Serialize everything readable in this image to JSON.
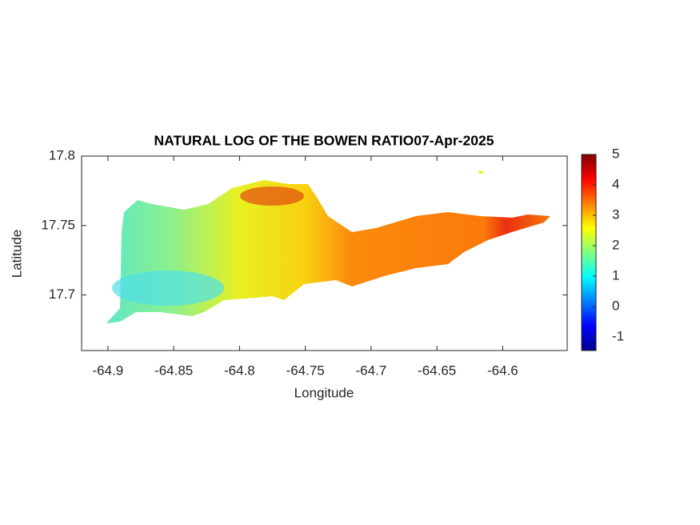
{
  "chart_data": {
    "type": "heatmap",
    "title": "NATURAL LOG OF THE BOWEN RATIO07-Apr-2025",
    "x_label": "Longitude",
    "y_label": "Latitude",
    "xlim": [
      -64.92,
      -64.551
    ],
    "xticks": [
      -64.9,
      -64.85,
      -64.8,
      -64.75,
      -64.7,
      -64.65,
      -64.6
    ],
    "ylim": [
      17.66,
      17.8
    ],
    "yticks": [
      17.7,
      17.75,
      17.8
    ],
    "colorbar": {
      "clim": [
        -1.447,
        5
      ],
      "ticks": [
        -1,
        0,
        1,
        2,
        3,
        4,
        5
      ],
      "colormap": "jet"
    }
  }
}
